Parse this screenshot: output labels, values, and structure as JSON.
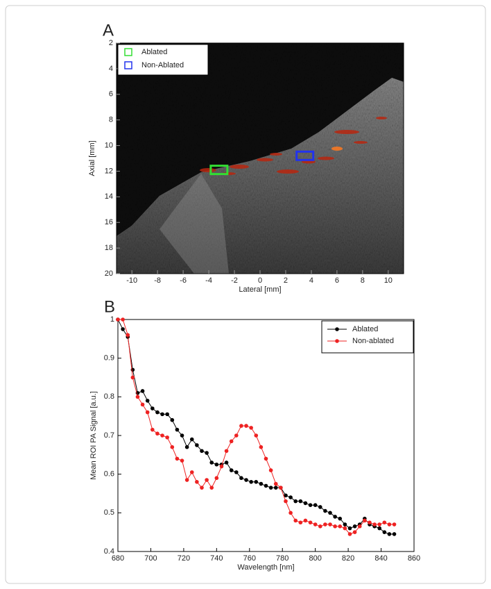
{
  "chart_data": [
    {
      "type": "image",
      "label": "A",
      "xlabel": "Lateral [mm]",
      "ylabel": "Axial [mm]",
      "xlim": [
        -11.2,
        11.2
      ],
      "xticks": [
        -10,
        -8,
        -6,
        -4,
        -2,
        0,
        2,
        4,
        6,
        8,
        10
      ],
      "ylim": [
        2,
        20
      ],
      "yticks": [
        2,
        4,
        6,
        8,
        10,
        12,
        14,
        16,
        18,
        20
      ],
      "y_reversed": true,
      "series": [
        {
          "name": "Ablated",
          "color": "#33dd33",
          "x": [
            -3.2
          ],
          "y": [
            11.9
          ]
        },
        {
          "name": "Non-Ablated",
          "color": "#2233ee",
          "x": [
            3.5
          ],
          "y": [
            10.8
          ]
        }
      ]
    },
    {
      "type": "line",
      "label": "B",
      "xlabel": "Wavelength [nm]",
      "ylabel": "Mean ROI PA Signal [a.u.]",
      "xlim": [
        680,
        860
      ],
      "xticks": [
        680,
        700,
        720,
        740,
        760,
        780,
        800,
        820,
        840,
        860
      ],
      "ylim": [
        0.4,
        1
      ],
      "yticks": [
        0.4,
        0.5,
        0.6,
        0.7,
        0.8,
        0.9,
        1
      ],
      "legend": "upper right",
      "x": [
        680,
        683,
        686,
        689,
        692,
        695,
        698,
        701,
        704,
        707,
        710,
        713,
        716,
        719,
        722,
        725,
        728,
        731,
        734,
        737,
        740,
        743,
        746,
        749,
        752,
        755,
        758,
        761,
        764,
        767,
        770,
        773,
        776,
        779,
        782,
        785,
        788,
        791,
        794,
        797,
        800,
        803,
        806,
        809,
        812,
        815,
        818,
        821,
        824,
        827,
        830,
        833,
        836,
        839,
        842,
        845,
        848
      ],
      "series": [
        {
          "name": "Ablated",
          "color": "#000000",
          "values": [
            1.0,
            0.975,
            0.955,
            0.87,
            0.81,
            0.815,
            0.79,
            0.77,
            0.76,
            0.755,
            0.755,
            0.74,
            0.715,
            0.7,
            0.67,
            0.69,
            0.675,
            0.66,
            0.655,
            0.63,
            0.625,
            0.625,
            0.63,
            0.61,
            0.605,
            0.59,
            0.585,
            0.58,
            0.58,
            0.575,
            0.57,
            0.565,
            0.565,
            0.565,
            0.545,
            0.54,
            0.53,
            0.53,
            0.525,
            0.52,
            0.52,
            0.515,
            0.505,
            0.5,
            0.49,
            0.485,
            0.47,
            0.46,
            0.465,
            0.47,
            0.485,
            0.47,
            0.465,
            0.46,
            0.45,
            0.445,
            0.445
          ]
        },
        {
          "name": "Non-ablated",
          "color": "#ee2222",
          "values": [
            1.0,
            1.0,
            0.96,
            0.85,
            0.8,
            0.78,
            0.76,
            0.715,
            0.705,
            0.7,
            0.695,
            0.67,
            0.64,
            0.635,
            0.585,
            0.605,
            0.58,
            0.565,
            0.585,
            0.565,
            0.59,
            0.62,
            0.66,
            0.685,
            0.7,
            0.725,
            0.725,
            0.72,
            0.7,
            0.67,
            0.64,
            0.61,
            0.575,
            0.565,
            0.53,
            0.5,
            0.48,
            0.475,
            0.48,
            0.475,
            0.47,
            0.465,
            0.47,
            0.47,
            0.465,
            0.465,
            0.46,
            0.445,
            0.45,
            0.465,
            0.48,
            0.475,
            0.47,
            0.47,
            0.475,
            0.47,
            0.47
          ]
        }
      ]
    }
  ]
}
